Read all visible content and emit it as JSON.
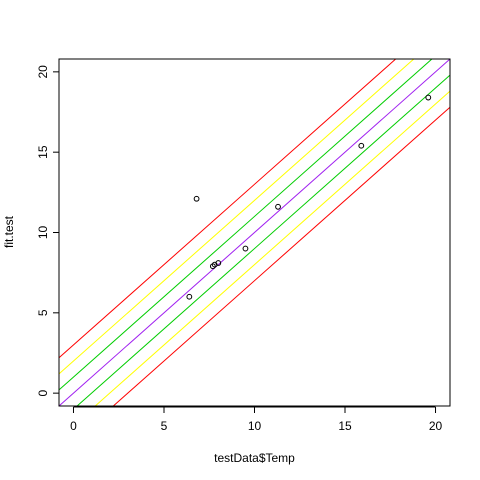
{
  "chart_data": {
    "type": "scatter",
    "title": "",
    "xlabel": "testData$Temp",
    "ylabel": "fit.test",
    "xlim": [
      -0.8,
      20.8
    ],
    "ylim": [
      -0.8,
      20.8
    ],
    "x_ticks": [
      0,
      5,
      10,
      15,
      20
    ],
    "y_ticks": [
      0,
      5,
      10,
      15,
      20
    ],
    "grid": false,
    "legend": "none",
    "points": [
      {
        "x": 6.4,
        "y": 6.0
      },
      {
        "x": 6.8,
        "y": 12.1
      },
      {
        "x": 7.7,
        "y": 7.9
      },
      {
        "x": 7.8,
        "y": 8.0
      },
      {
        "x": 8.0,
        "y": 8.1
      },
      {
        "x": 9.5,
        "y": 9.0
      },
      {
        "x": 11.3,
        "y": 11.6
      },
      {
        "x": 15.9,
        "y": 15.4
      },
      {
        "x": 19.6,
        "y": 18.4
      }
    ],
    "lines": [
      {
        "intercept": 3.0,
        "slope": 1,
        "color": "#ff0000"
      },
      {
        "intercept": 2.0,
        "slope": 1,
        "color": "#ffff00"
      },
      {
        "intercept": 1.0,
        "slope": 1,
        "color": "#00cd00"
      },
      {
        "intercept": 0.0,
        "slope": 1,
        "color": "#a020f0"
      },
      {
        "intercept": -1.0,
        "slope": 1,
        "color": "#00cd00"
      },
      {
        "intercept": -2.0,
        "slope": 1,
        "color": "#ffff00"
      },
      {
        "intercept": -3.0,
        "slope": 1,
        "color": "#ff0000"
      }
    ]
  }
}
